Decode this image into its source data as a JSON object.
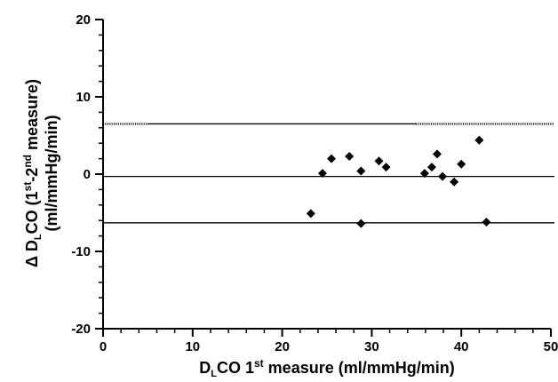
{
  "chart_data": {
    "type": "scatter",
    "title": "",
    "xlabel": {
      "pre": "D",
      "sub": "L",
      "mid": "CO 1",
      "sup": "st",
      "post": " measure (ml/mmHg/min)"
    },
    "ylabel": {
      "line1": {
        "pre": "Δ D",
        "sub": "L",
        "mid": "CO (1",
        "sup1": "st",
        "mid2": "-2",
        "sup2": "nd",
        "post": " measure)"
      },
      "line2": "(ml/mmHg/min)"
    },
    "xlim": [
      0,
      50
    ],
    "ylim": [
      -20,
      20
    ],
    "x_ticks": [
      "0",
      "10",
      "20",
      "30",
      "40",
      "50"
    ],
    "y_ticks": [
      "20",
      "10",
      "0",
      "-10",
      "-20"
    ],
    "grid": false,
    "reference_lines": [
      {
        "label": "upper limit of agreement",
        "y": 6.5,
        "style": "solid with dotted ends"
      },
      {
        "label": "mean difference",
        "y": -0.3,
        "style": "solid"
      },
      {
        "label": "lower limit of agreement",
        "y": -6.3,
        "style": "solid"
      }
    ],
    "series": [
      {
        "marker": "diamond",
        "points": [
          {
            "x": 23.2,
            "y": -5.1
          },
          {
            "x": 24.5,
            "y": 0.1
          },
          {
            "x": 25.5,
            "y": 2.0
          },
          {
            "x": 27.5,
            "y": 2.3
          },
          {
            "x": 28.8,
            "y": 0.4
          },
          {
            "x": 28.8,
            "y": -6.4
          },
          {
            "x": 30.8,
            "y": 1.7
          },
          {
            "x": 31.6,
            "y": 0.9
          },
          {
            "x": 35.9,
            "y": 0.1
          },
          {
            "x": 36.7,
            "y": 0.9
          },
          {
            "x": 37.3,
            "y": 2.6
          },
          {
            "x": 37.9,
            "y": -0.3
          },
          {
            "x": 39.2,
            "y": -1.0
          },
          {
            "x": 40.0,
            "y": 1.3
          },
          {
            "x": 42.0,
            "y": 4.4
          },
          {
            "x": 42.8,
            "y": -6.2
          }
        ]
      }
    ]
  }
}
